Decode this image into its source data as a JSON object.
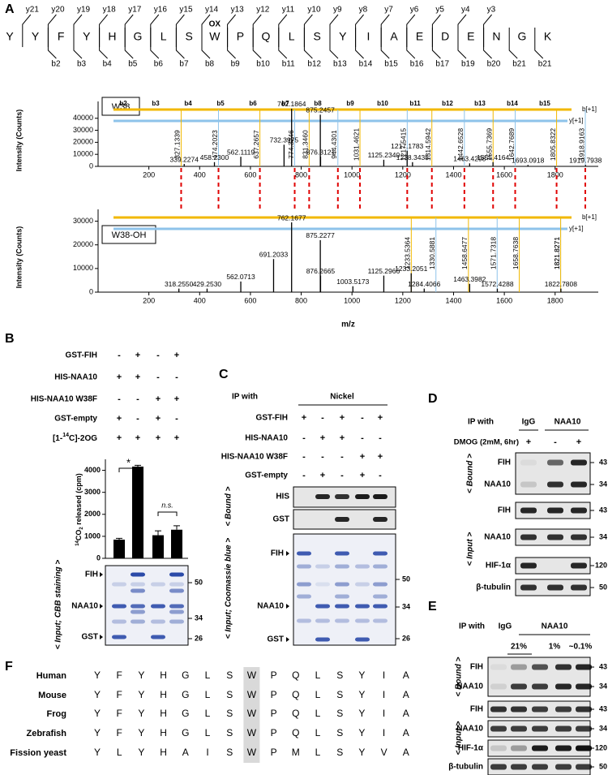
{
  "panel_a": {
    "label": "A",
    "sequence": [
      "Y",
      "Y",
      "F",
      "Y",
      "H",
      "G",
      "L",
      "S",
      "W",
      "P",
      "Q",
      "L",
      "S",
      "Y",
      "I",
      "A",
      "E",
      "D",
      "E",
      "N",
      "G",
      "K"
    ],
    "modification": "OX",
    "y_ions": [
      "y21",
      "y20",
      "y19",
      "y18",
      "y17",
      "y16",
      "y15",
      "y14",
      "y13",
      "y12",
      "y11",
      "y10",
      "y9",
      "y8",
      "y7",
      "y6",
      "y5",
      "y4",
      "y3"
    ],
    "b_ions": [
      "b2",
      "b3",
      "b4",
      "b5",
      "b6",
      "b7",
      "b8",
      "b9",
      "b10",
      "b11",
      "b12",
      "b13",
      "b14",
      "b15",
      "b16",
      "b17",
      "b19",
      "b20",
      "b21",
      "b21"
    ],
    "x_label": "m/z",
    "y_label": "Intensity (Counts)",
    "xlim": [
      0,
      1970
    ],
    "xticks": [
      200,
      400,
      600,
      800,
      1000,
      1200,
      1400,
      1600,
      1800
    ],
    "spectra": [
      {
        "name": "W38",
        "ylim": [
          0,
          54000
        ],
        "yticks": [
          0,
          10000,
          20000,
          30000,
          40000
        ],
        "ladder": [
          "b2",
          "b3",
          "b4",
          "b5",
          "b6",
          "b7",
          "b8",
          "b9",
          "b10",
          "b11",
          "b12",
          "b13",
          "b14",
          "b15"
        ],
        "ladder_b_end": "b[+1]",
        "ladder_y_end": "y[+1]",
        "peaks": [
          {
            "mz": 339.2274,
            "intensity": 2000,
            "label": "339.2274"
          },
          {
            "mz": 458.23,
            "intensity": 3500,
            "label": "458.2300"
          },
          {
            "mz": 562.1119,
            "intensity": 8000,
            "label": "562.1119"
          },
          {
            "mz": 732.3975,
            "intensity": 18000,
            "label": "732.3975"
          },
          {
            "mz": 762.1864,
            "intensity": 48000,
            "label": "762.1864"
          },
          {
            "mz": 875.2457,
            "intensity": 43000,
            "label": "875.2457"
          },
          {
            "mz": 876.3121,
            "intensity": 8000,
            "label": "876.3121"
          },
          {
            "mz": 1125.234,
            "intensity": 5500,
            "label": "1125.2340"
          },
          {
            "mz": 1217.1783,
            "intensity": 13000,
            "label": "1217.1783"
          },
          {
            "mz": 1238.3438,
            "intensity": 3500,
            "label": "1238.3438"
          },
          {
            "mz": 1463.4298,
            "intensity": 2500,
            "label": "1463.4298"
          },
          {
            "mz": 1555.4164,
            "intensity": 3500,
            "label": "1555.4164"
          },
          {
            "mz": 1693.0918,
            "intensity": 1200,
            "label": "1693.0918"
          },
          {
            "mz": 1919.7938,
            "intensity": 1200,
            "label": "1919.7938"
          }
        ],
        "ion_labels": [
          {
            "mz": 327.1339,
            "label": "327.1339"
          },
          {
            "mz": 474.2023,
            "label": "474.2023"
          },
          {
            "mz": 637.2657,
            "label": "637.2657"
          },
          {
            "mz": 774.3246,
            "label": "774.3246"
          },
          {
            "mz": 831.346,
            "label": "831.3460"
          },
          {
            "mz": 944.4301,
            "label": "944.4301"
          },
          {
            "mz": 1031.4621,
            "label": "1031.4621"
          },
          {
            "mz": 1217.5415,
            "label": "1217.5415"
          },
          {
            "mz": 1314.5942,
            "label": "1314.5942"
          },
          {
            "mz": 1442.6528,
            "label": "1442.6528"
          },
          {
            "mz": 1555.7369,
            "label": "1555.7369"
          },
          {
            "mz": 1642.7689,
            "label": "1642.7689"
          },
          {
            "mz": 1805.8322,
            "label": "1805.8322"
          },
          {
            "mz": 1918.9163,
            "label": "1918.9163"
          }
        ]
      },
      {
        "name": "W38-OH",
        "ylim": [
          0,
          35000
        ],
        "yticks": [
          0,
          10000,
          20000,
          30000
        ],
        "ladder_b_end": "b[+1]",
        "ladder_y_end": "y[+1]",
        "peaks": [
          {
            "mz": 318.255,
            "intensity": 1500,
            "label": "318.2550"
          },
          {
            "mz": 429.253,
            "intensity": 1500,
            "label": "429.2530"
          },
          {
            "mz": 562.0713,
            "intensity": 4500,
            "label": "562.0713"
          },
          {
            "mz": 691.2033,
            "intensity": 14000,
            "label": "691.2033"
          },
          {
            "mz": 762.1677,
            "intensity": 29500,
            "label": "762.1677"
          },
          {
            "mz": 875.2277,
            "intensity": 22000,
            "label": "875.2277"
          },
          {
            "mz": 876.2665,
            "intensity": 7000,
            "label": "876.2665"
          },
          {
            "mz": 1003.5173,
            "intensity": 2500,
            "label": "1003.5173"
          },
          {
            "mz": 1125.2966,
            "intensity": 7000,
            "label": "1125.2966"
          },
          {
            "mz": 1233.2051,
            "intensity": 8000,
            "label": "1233.2051"
          },
          {
            "mz": 1284.4066,
            "intensity": 1500,
            "label": "1284.4066"
          },
          {
            "mz": 1463.3982,
            "intensity": 3500,
            "label": "1463.3982"
          },
          {
            "mz": 1572.4288,
            "intensity": 1500,
            "label": "1572.4288"
          },
          {
            "mz": 1822.7808,
            "intensity": 1500,
            "label": "1822.7808"
          }
        ],
        "ion_labels": [
          {
            "mz": 1233.5364,
            "label": "1233.5364"
          },
          {
            "mz": 1330.5881,
            "label": "1330.5881"
          },
          {
            "mz": 1458.6477,
            "label": "1458.6477"
          },
          {
            "mz": 1571.7318,
            "label": "1571.7318"
          },
          {
            "mz": 1658.7638,
            "label": "1658.7638"
          },
          {
            "mz": 1821.8271,
            "label": "1821.8271"
          },
          {
            "mz": 1821.8271,
            "label": "1821.8271"
          }
        ]
      }
    ]
  },
  "panel_b": {
    "label": "B",
    "rows": [
      "GST-FIH",
      "HIS-NAA10",
      "HIS-NAA10 W38F",
      "GST-empty"
    ],
    "isotope_row": {
      "pre": "[1-",
      "sup": "14",
      "post": "C]-2OG"
    },
    "signs": [
      [
        "-",
        "+",
        "-",
        "+"
      ],
      [
        "+",
        "+",
        "-",
        "-"
      ],
      [
        "-",
        "-",
        "+",
        "+"
      ],
      [
        "+",
        "-",
        "+",
        "-"
      ],
      [
        "+",
        "+",
        "+",
        "+"
      ]
    ],
    "chart": {
      "type": "bar",
      "y_label": {
        "sup": "14",
        "main": "CO",
        "sub": "2",
        "post": " released (cpm)"
      },
      "values": [
        850,
        4170,
        1050,
        1300
      ],
      "errors": [
        60,
        60,
        200,
        180
      ],
      "color": "#000000",
      "ylim": [
        0,
        4500
      ],
      "yticks": [
        0,
        1000,
        2000,
        3000,
        4000
      ],
      "significance": [
        "*",
        "n.s."
      ]
    },
    "gel": {
      "side_label": "< Input; CBB staining >",
      "bands": [
        "FIH",
        "NAA10",
        "GST"
      ],
      "mw": [
        50,
        34,
        26
      ]
    }
  },
  "panel_c": {
    "label": "C",
    "ip_with": "IP with",
    "ip_target": "Nickel",
    "rows": [
      "GST-FIH",
      "HIS-NAA10",
      "HIS-NAA10 W38F",
      "GST-empty"
    ],
    "signs": [
      [
        "+",
        "-",
        "+",
        "-",
        "+"
      ],
      [
        "-",
        "+",
        "+",
        "-",
        "-"
      ],
      [
        "-",
        "-",
        "-",
        "+",
        "+"
      ],
      [
        "-",
        "+",
        "-",
        "+",
        "-"
      ]
    ],
    "bound_label": "< Bound >",
    "blots": [
      "HIS",
      "GST"
    ],
    "gel": {
      "side_label": "< Input; Coomassie blue >",
      "bands": [
        "FIH",
        "NAA10",
        "GST"
      ],
      "mw": [
        50,
        34,
        26
      ]
    }
  },
  "panel_d": {
    "label": "D",
    "ip_with": "IP with",
    "groups": [
      "IgG",
      "NAA10"
    ],
    "treatment": "DMOG (2mM, 6hr)",
    "signs": [
      "+",
      "-",
      "+"
    ],
    "bound": {
      "side_label": "< Bound >",
      "rows": [
        "FIH",
        "NAA10"
      ],
      "mw": [
        43,
        34
      ]
    },
    "input": {
      "side_label": "< Input >",
      "rows": [
        "FIH",
        "NAA10",
        "HIF-1α",
        "β-tubulin"
      ],
      "mw": [
        43,
        34,
        120,
        50
      ]
    }
  },
  "panel_e": {
    "label": "E",
    "ip_with": "IP with",
    "groups": [
      "IgG",
      "NAA10"
    ],
    "conditions": [
      "21%",
      "1%",
      "~0.1%"
    ],
    "bound": {
      "side_label": "< Bound >",
      "rows": [
        "FIH",
        "NAA10"
      ],
      "mw": [
        43,
        34
      ]
    },
    "input": {
      "side_label": "< Input >",
      "rows": [
        "FIH",
        "NAA10",
        "HIF-1α",
        "β-tubulin"
      ],
      "mw": [
        43,
        34,
        120,
        50
      ]
    }
  },
  "panel_f": {
    "label": "F",
    "species": [
      {
        "name": "Human",
        "residues": [
          "Y",
          "F",
          "Y",
          "H",
          "G",
          "L",
          "S",
          "W",
          "P",
          "Q",
          "L",
          "S",
          "Y",
          "I",
          "A"
        ]
      },
      {
        "name": "Mouse",
        "residues": [
          "Y",
          "F",
          "Y",
          "H",
          "G",
          "L",
          "S",
          "W",
          "P",
          "Q",
          "L",
          "S",
          "Y",
          "I",
          "A"
        ]
      },
      {
        "name": "Frog",
        "residues": [
          "Y",
          "F",
          "Y",
          "H",
          "G",
          "L",
          "S",
          "W",
          "P",
          "Q",
          "L",
          "S",
          "Y",
          "I",
          "A"
        ]
      },
      {
        "name": "Zebrafish",
        "residues": [
          "Y",
          "F",
          "Y",
          "H",
          "G",
          "L",
          "S",
          "W",
          "P",
          "Q",
          "L",
          "S",
          "Y",
          "I",
          "A"
        ]
      },
      {
        "name": "Fission yeast",
        "residues": [
          "Y",
          "L",
          "Y",
          "H",
          "A",
          "I",
          "S",
          "W",
          "P",
          "M",
          "L",
          "S",
          "Y",
          "V",
          "A"
        ]
      }
    ]
  }
}
